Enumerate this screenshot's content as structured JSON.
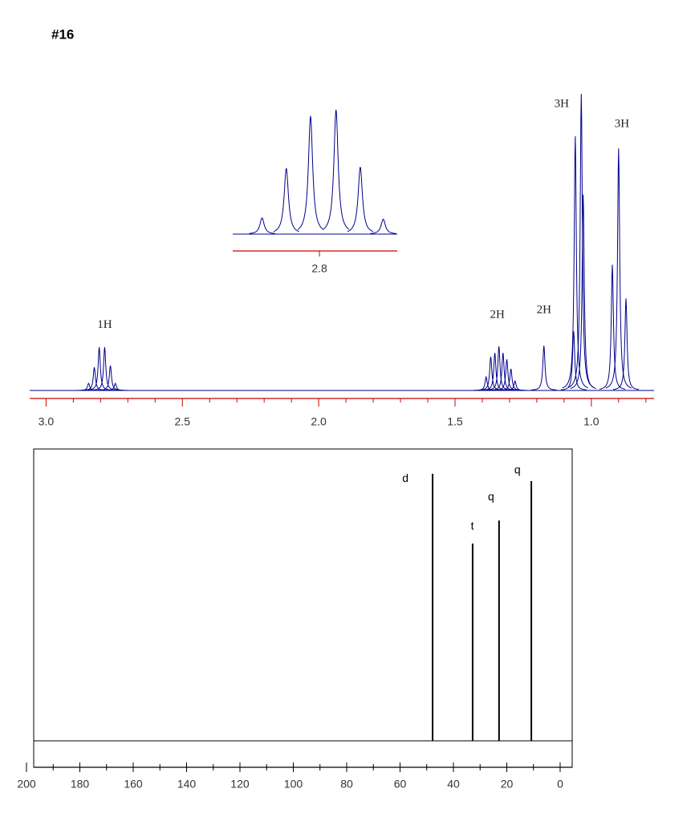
{
  "title": "#16",
  "chart_data": [
    {
      "type": "spectrum",
      "color": "#00008b",
      "axis_color": "#cc0000",
      "xlim": [
        3.06,
        0.77
      ],
      "ylim": [
        0,
        100
      ],
      "xticks": [
        {
          "value": 3,
          "label": "3.0"
        },
        2.5,
        {
          "value": 2,
          "label": "2.0"
        },
        1.5,
        {
          "value": 1,
          "label": "1.0"
        }
      ],
      "xminor": [
        2.9,
        2.8,
        2.7,
        2.6,
        2.4,
        2.3,
        2.2,
        2.1,
        1.9,
        1.8,
        1.7,
        1.6,
        1.4,
        1.3,
        1.2,
        1.1,
        0.9,
        0.8
      ],
      "x": [
        2.844,
        2.823,
        2.805,
        2.785,
        2.764,
        2.746,
        1.386,
        1.369,
        1.354,
        1.339,
        1.324,
        1.31,
        1.295,
        1.28,
        1.174,
        1.065,
        1.059,
        1.037,
        1.03,
        0.923,
        0.9,
        0.873
      ],
      "values": [
        2.4,
        7.8,
        14.6,
        14.6,
        8.4,
        2.4,
        4.6,
        11.4,
        12.7,
        14.9,
        12.7,
        10.5,
        7.3,
        3.2,
        15.1,
        20,
        85.7,
        100,
        66,
        42.4,
        81.6,
        31
      ],
      "annotations": [
        {
          "text": "1H",
          "x": 2.785,
          "y": 22
        },
        {
          "text": "2H",
          "x": 1.345,
          "y": 25.4
        },
        {
          "text": "2H",
          "x": 1.174,
          "y": 27
        },
        {
          "text": "3H",
          "x": 1.109,
          "y": 96.5
        },
        {
          "text": "3H",
          "x": 0.888,
          "y": 89.7
        }
      ]
    },
    {
      "type": "spectrum",
      "color": "#00008b",
      "axis_color": "#cc0000",
      "xlim": [
        2.868,
        2.739
      ],
      "ylim": [
        0,
        100
      ],
      "xticks": [
        2.8
      ],
      "x": [
        2.845,
        2.826,
        2.807,
        2.787,
        2.768,
        2.75
      ],
      "values": [
        13,
        53,
        95,
        100,
        54,
        12
      ]
    },
    {
      "type": "stick",
      "color": "#000000",
      "axis_color": "#000000",
      "xlim": [
        200,
        -5
      ],
      "ylim": [
        0,
        100
      ],
      "xticks": [
        200,
        180,
        160,
        140,
        120,
        100,
        80,
        60,
        40,
        20,
        0
      ],
      "xminor": [
        190,
        170,
        150,
        130,
        110,
        90,
        70,
        50,
        30,
        10
      ],
      "x": [
        47.8,
        32.8,
        22.9,
        10.8
      ],
      "values": [
        91.5,
        67.6,
        75.5,
        89
      ],
      "annotations": [
        {
          "text": "d",
          "x": 58,
          "y": 89.8
        },
        {
          "text": "t",
          "x": 32.9,
          "y": 73.4
        },
        {
          "text": "q",
          "x": 25.9,
          "y": 83.5
        },
        {
          "text": "q",
          "x": 16,
          "y": 92.6
        }
      ]
    }
  ]
}
